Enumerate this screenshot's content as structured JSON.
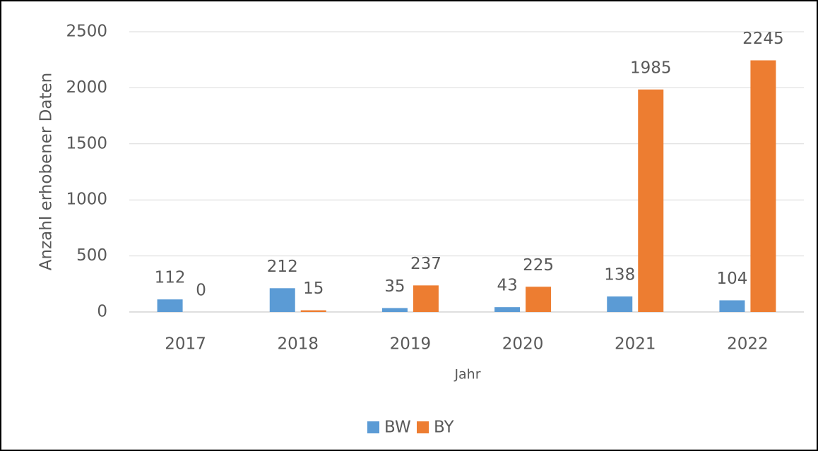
{
  "chart_data": {
    "type": "bar",
    "categories": [
      "2017",
      "2018",
      "2019",
      "2020",
      "2021",
      "2022"
    ],
    "series": [
      {
        "name": "BW",
        "color": "#5b9bd5",
        "values": [
          112,
          212,
          35,
          43,
          138,
          104
        ]
      },
      {
        "name": "BY",
        "color": "#ed7d31",
        "values": [
          0,
          15,
          237,
          225,
          1985,
          2245
        ]
      }
    ],
    "x_label": "Jahr",
    "y_label": "Anzahl erhobener Daten",
    "ylim": [
      0,
      2500
    ],
    "yticks": [
      0,
      500,
      1000,
      1500,
      2000,
      2500
    ],
    "grid": true,
    "legend": "bottom"
  }
}
